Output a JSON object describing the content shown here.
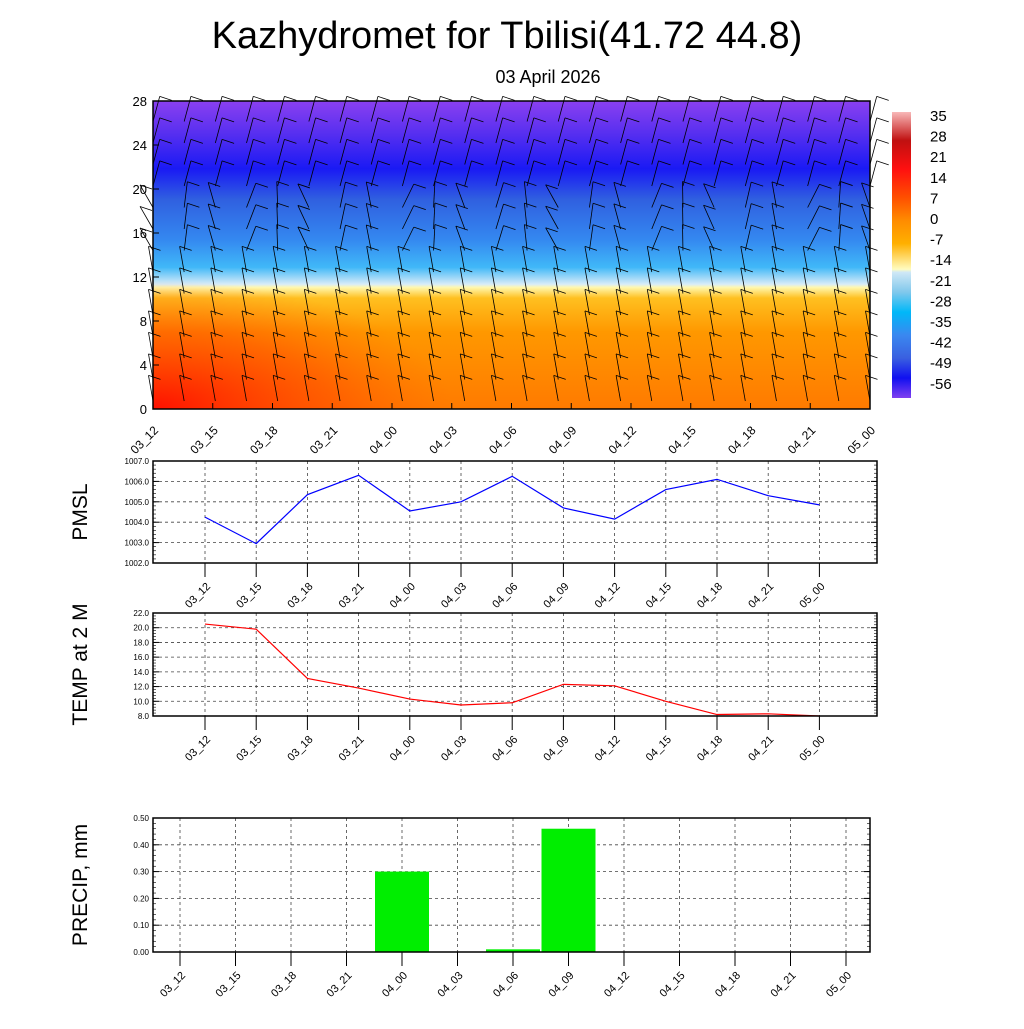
{
  "title": "Kazhydromet for Tbilisi(41.72 44.8)",
  "subtitle": "03 April 2026",
  "time_labels": [
    "03_12",
    "03_15",
    "03_18",
    "03_21",
    "04_00",
    "04_03",
    "04_06",
    "04_09",
    "04_12",
    "04_15",
    "04_18",
    "04_21",
    "05_00"
  ],
  "chart_data": [
    {
      "type": "heatmap",
      "name": "Vertical temperature cross-section with wind barbs",
      "ylim": [
        0,
        28
      ],
      "yticks": [
        "0",
        "4",
        "8",
        "12",
        "16",
        "20",
        "24",
        "28"
      ],
      "colorbar": {
        "labels": [
          "35",
          "28",
          "21",
          "14",
          "7",
          "0",
          "-7",
          "-14",
          "-21",
          "-28",
          "-35",
          "-42",
          "-49",
          "-56"
        ],
        "colors": [
          "#f8b0b0",
          "#c01010",
          "#ff1010",
          "#ff4000",
          "#ff8000",
          "#ffa800",
          "#ffd040",
          "#fffcc0",
          "#c8e4f4",
          "#00b8f8",
          "#3090f0",
          "#3060e0",
          "#1010f0",
          "#8040f0"
        ]
      }
    },
    {
      "type": "line",
      "ylabel": "PMSL",
      "ylim": [
        1002,
        1007
      ],
      "yticks": [
        "1002.0",
        "1003.0",
        "1004.0",
        "1005.0",
        "1006.0",
        "1007.0"
      ],
      "values": [
        1004.25,
        1002.95,
        1005.35,
        1006.3,
        1004.55,
        1005.0,
        1006.25,
        1004.7,
        1004.15,
        1005.6,
        1006.1,
        1005.3,
        1004.85
      ],
      "color": "#0000ff"
    },
    {
      "type": "line",
      "ylabel": "TEMP at 2 M",
      "ylim": [
        8,
        22
      ],
      "yticks": [
        "8.0",
        "10.0",
        "12.0",
        "14.0",
        "16.0",
        "18.0",
        "20.0",
        "22.0"
      ],
      "values": [
        20.5,
        19.8,
        13.1,
        11.8,
        10.3,
        9.5,
        9.8,
        12.3,
        12.1,
        10.0,
        8.2,
        8.3,
        8.0
      ],
      "color": "#ff0000"
    },
    {
      "type": "bar",
      "ylabel": "PRECIP, mm",
      "ylim": [
        0,
        0.5
      ],
      "yticks": [
        "0.00",
        "0.10",
        "0.20",
        "0.30",
        "0.40",
        "0.50"
      ],
      "values": [
        0,
        0,
        0,
        0,
        0.3,
        0,
        0.01,
        0.46,
        0,
        0,
        0,
        0,
        0
      ],
      "color": "#00ee00"
    }
  ]
}
